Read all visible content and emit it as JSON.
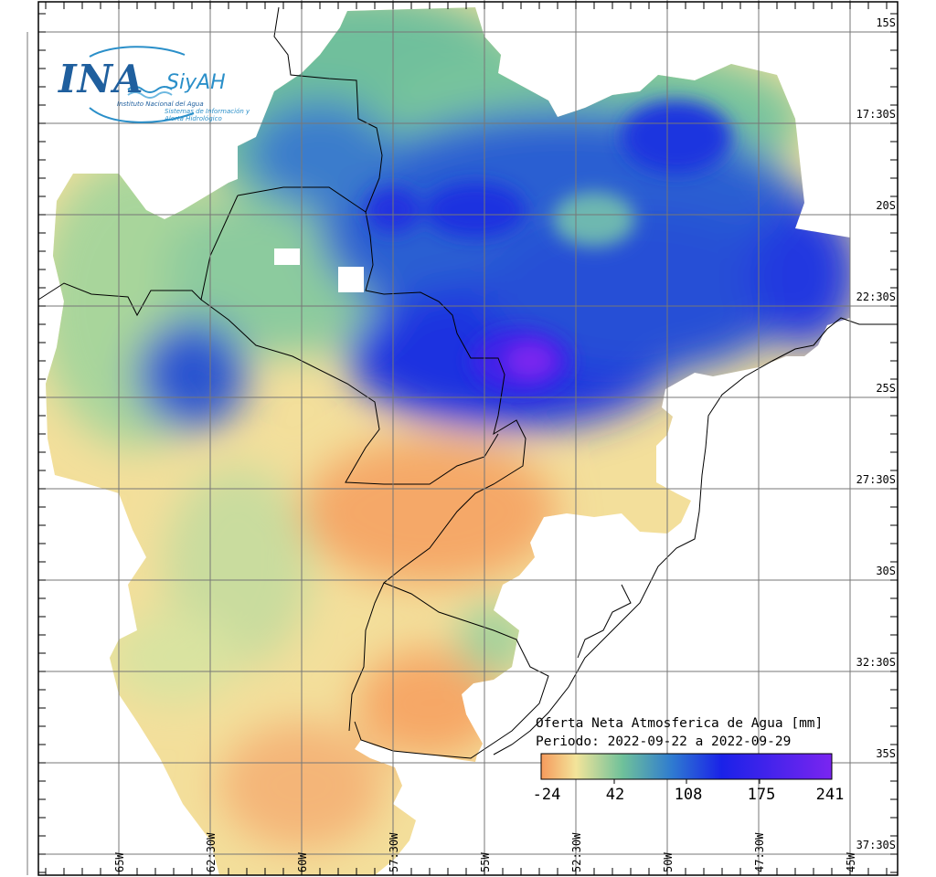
{
  "logo": {
    "name": "INA",
    "brand": "SiyAH",
    "org": "Instituto Nacional del Agua",
    "system": "Sistemas de Información y Alerta Hidrológico"
  },
  "legend": {
    "title": "Oferta Neta Atmosferica de Agua [mm]",
    "period": "Periodo: 2022-09-22 a 2022-09-29",
    "ticks": [
      "-24",
      "42",
      "108",
      "175",
      "241"
    ],
    "colors": [
      "#f59a5c",
      "#f3e49a",
      "#6fc19a",
      "#2f7bd0",
      "#1a22e8",
      "#7a25f0"
    ]
  },
  "lat_labels": [
    "15S",
    "17:30S",
    "20S",
    "22:30S",
    "25S",
    "27:30S",
    "30S",
    "32:30S",
    "35S",
    "37:30S"
  ],
  "lon_labels": [
    "65W",
    "62:30W",
    "60W",
    "57:30W",
    "55W",
    "52:30W",
    "50W",
    "47:30W",
    "45W"
  ]
}
